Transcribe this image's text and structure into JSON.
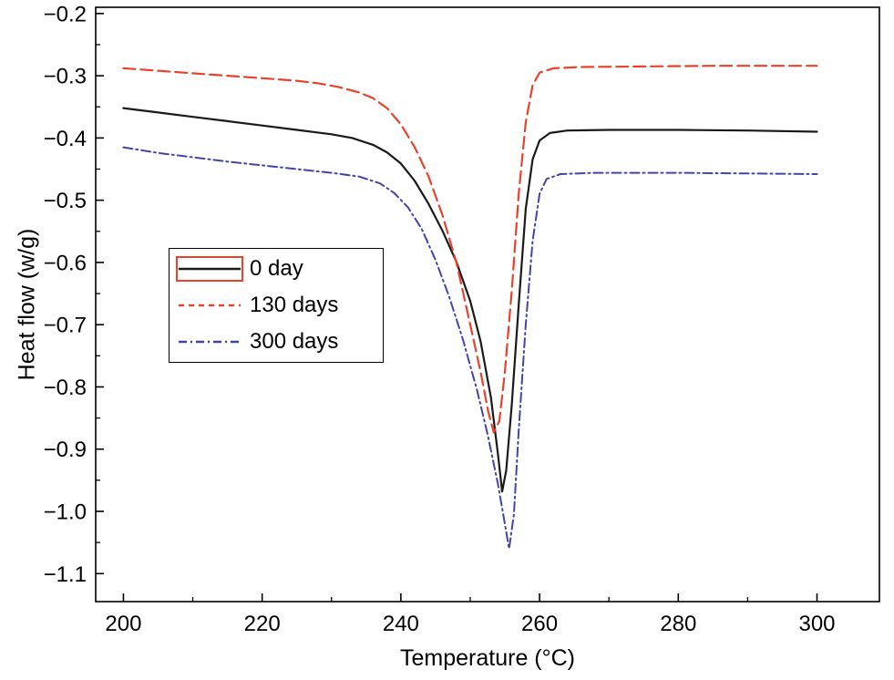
{
  "figure": {
    "background": "#ffffff",
    "axis_color": "#000000"
  },
  "chart_data": {
    "type": "line",
    "title": "",
    "xlabel": "Temperature (°C)",
    "ylabel": "Heat flow (w/g)",
    "xlim": [
      196,
      309
    ],
    "ylim": [
      -1.145,
      -0.19
    ],
    "xticks": [
      200,
      220,
      240,
      260,
      280,
      300
    ],
    "xtick_labels": [
      "200",
      "220",
      "240",
      "260",
      "280",
      "300"
    ],
    "yticks": [
      -0.2,
      -0.3,
      -0.4,
      -0.5,
      -0.6,
      -0.7,
      -0.8,
      -0.9,
      -1.0,
      -1.1
    ],
    "ytick_labels": [
      "−0.2",
      "−0.3",
      "−0.4",
      "−0.5",
      "−0.6",
      "−0.7",
      "−0.8",
      "−0.9",
      "−1.0",
      "−1.1"
    ],
    "x_minor_step": 10,
    "y_minor_step": 0.05,
    "grid": false,
    "legend": {
      "position": "inside-upper-left",
      "key0_box_color": "#e8422c",
      "entries": [
        "0 day",
        "130 days",
        "300 days"
      ]
    },
    "series": [
      {
        "name": "0 day",
        "color": "#1a1a1a",
        "line_style": "solid",
        "width": 2.2,
        "dash": "",
        "dash_legend": "",
        "points": [
          [
            200,
            -0.352
          ],
          [
            205,
            -0.359
          ],
          [
            210,
            -0.366
          ],
          [
            215,
            -0.373
          ],
          [
            220,
            -0.38
          ],
          [
            225,
            -0.387
          ],
          [
            230,
            -0.394
          ],
          [
            233,
            -0.4
          ],
          [
            236,
            -0.411
          ],
          [
            238,
            -0.423
          ],
          [
            240,
            -0.441
          ],
          [
            242,
            -0.469
          ],
          [
            244,
            -0.506
          ],
          [
            246,
            -0.549
          ],
          [
            248,
            -0.599
          ],
          [
            250,
            -0.662
          ],
          [
            251.5,
            -0.727
          ],
          [
            253,
            -0.818
          ],
          [
            254,
            -0.908
          ],
          [
            254.6,
            -0.968
          ],
          [
            255.2,
            -0.934
          ],
          [
            256,
            -0.828
          ],
          [
            257,
            -0.668
          ],
          [
            258,
            -0.514
          ],
          [
            259,
            -0.434
          ],
          [
            260,
            -0.404
          ],
          [
            261.5,
            -0.392
          ],
          [
            264,
            -0.388
          ],
          [
            270,
            -0.387
          ],
          [
            280,
            -0.387
          ],
          [
            290,
            -0.388
          ],
          [
            300,
            -0.39
          ]
        ]
      },
      {
        "name": "130 days",
        "color": "#e8422c",
        "line_style": "dashed",
        "width": 2.2,
        "dash": "13 6",
        "dash_legend": "6 5",
        "points": [
          [
            200,
            -0.288
          ],
          [
            205,
            -0.292
          ],
          [
            210,
            -0.296
          ],
          [
            215,
            -0.3
          ],
          [
            220,
            -0.304
          ],
          [
            225,
            -0.308
          ],
          [
            228,
            -0.312
          ],
          [
            231,
            -0.318
          ],
          [
            234,
            -0.327
          ],
          [
            236,
            -0.336
          ],
          [
            238,
            -0.352
          ],
          [
            240,
            -0.378
          ],
          [
            242,
            -0.415
          ],
          [
            244,
            -0.462
          ],
          [
            246,
            -0.524
          ],
          [
            248,
            -0.6
          ],
          [
            250,
            -0.7
          ],
          [
            251.5,
            -0.776
          ],
          [
            252.6,
            -0.84
          ],
          [
            253.4,
            -0.873
          ],
          [
            254.2,
            -0.855
          ],
          [
            255,
            -0.776
          ],
          [
            256,
            -0.645
          ],
          [
            257,
            -0.49
          ],
          [
            258,
            -0.375
          ],
          [
            259,
            -0.315
          ],
          [
            260,
            -0.295
          ],
          [
            262,
            -0.288
          ],
          [
            266,
            -0.286
          ],
          [
            275,
            -0.285
          ],
          [
            285,
            -0.284
          ],
          [
            300,
            -0.284
          ]
        ]
      },
      {
        "name": "300 days",
        "color": "#4444a8",
        "line_style": "dash-dot",
        "width": 2.0,
        "dash": "10 4 2 4",
        "dash_legend": "9 4 2 4",
        "points": [
          [
            200,
            -0.415
          ],
          [
            205,
            -0.424
          ],
          [
            210,
            -0.431
          ],
          [
            215,
            -0.438
          ],
          [
            220,
            -0.444
          ],
          [
            225,
            -0.45
          ],
          [
            230,
            -0.456
          ],
          [
            234,
            -0.462
          ],
          [
            237,
            -0.473
          ],
          [
            239,
            -0.488
          ],
          [
            241,
            -0.511
          ],
          [
            243,
            -0.546
          ],
          [
            245,
            -0.596
          ],
          [
            247,
            -0.656
          ],
          [
            249,
            -0.726
          ],
          [
            251,
            -0.806
          ],
          [
            252.5,
            -0.876
          ],
          [
            254,
            -0.956
          ],
          [
            255,
            -1.02
          ],
          [
            255.6,
            -1.06
          ],
          [
            256.3,
            -1.005
          ],
          [
            257,
            -0.87
          ],
          [
            258,
            -0.7
          ],
          [
            259,
            -0.565
          ],
          [
            260,
            -0.49
          ],
          [
            261,
            -0.466
          ],
          [
            263,
            -0.458
          ],
          [
            268,
            -0.456
          ],
          [
            280,
            -0.456
          ],
          [
            290,
            -0.457
          ],
          [
            300,
            -0.458
          ]
        ]
      }
    ]
  }
}
